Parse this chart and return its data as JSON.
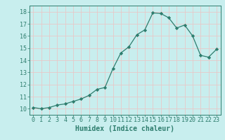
{
  "x": [
    0,
    1,
    2,
    3,
    4,
    5,
    6,
    7,
    8,
    9,
    10,
    11,
    12,
    13,
    14,
    15,
    16,
    17,
    18,
    19,
    20,
    21,
    22,
    23
  ],
  "y": [
    10.1,
    10.0,
    10.1,
    10.3,
    10.4,
    10.6,
    10.8,
    11.1,
    11.6,
    11.75,
    13.3,
    14.6,
    15.1,
    16.1,
    16.5,
    17.9,
    17.85,
    17.5,
    16.65,
    16.9,
    16.0,
    14.4,
    14.25,
    14.9
  ],
  "xlabel": "Humidex (Indice chaleur)",
  "ylim": [
    9.5,
    18.5
  ],
  "xlim": [
    -0.5,
    23.5
  ],
  "yticks": [
    10,
    11,
    12,
    13,
    14,
    15,
    16,
    17,
    18
  ],
  "xticks": [
    0,
    1,
    2,
    3,
    4,
    5,
    6,
    7,
    8,
    9,
    10,
    11,
    12,
    13,
    14,
    15,
    16,
    17,
    18,
    19,
    20,
    21,
    22,
    23
  ],
  "line_color": "#2e7d6e",
  "marker_color": "#2e7d6e",
  "bg_color": "#c8eeee",
  "grid_color": "#e8c8c8",
  "axes_color": "#2e7d6e",
  "tick_label_color": "#2e7d6e",
  "xlabel_color": "#2e7d6e",
  "xlabel_fontsize": 7,
  "tick_fontsize": 6
}
